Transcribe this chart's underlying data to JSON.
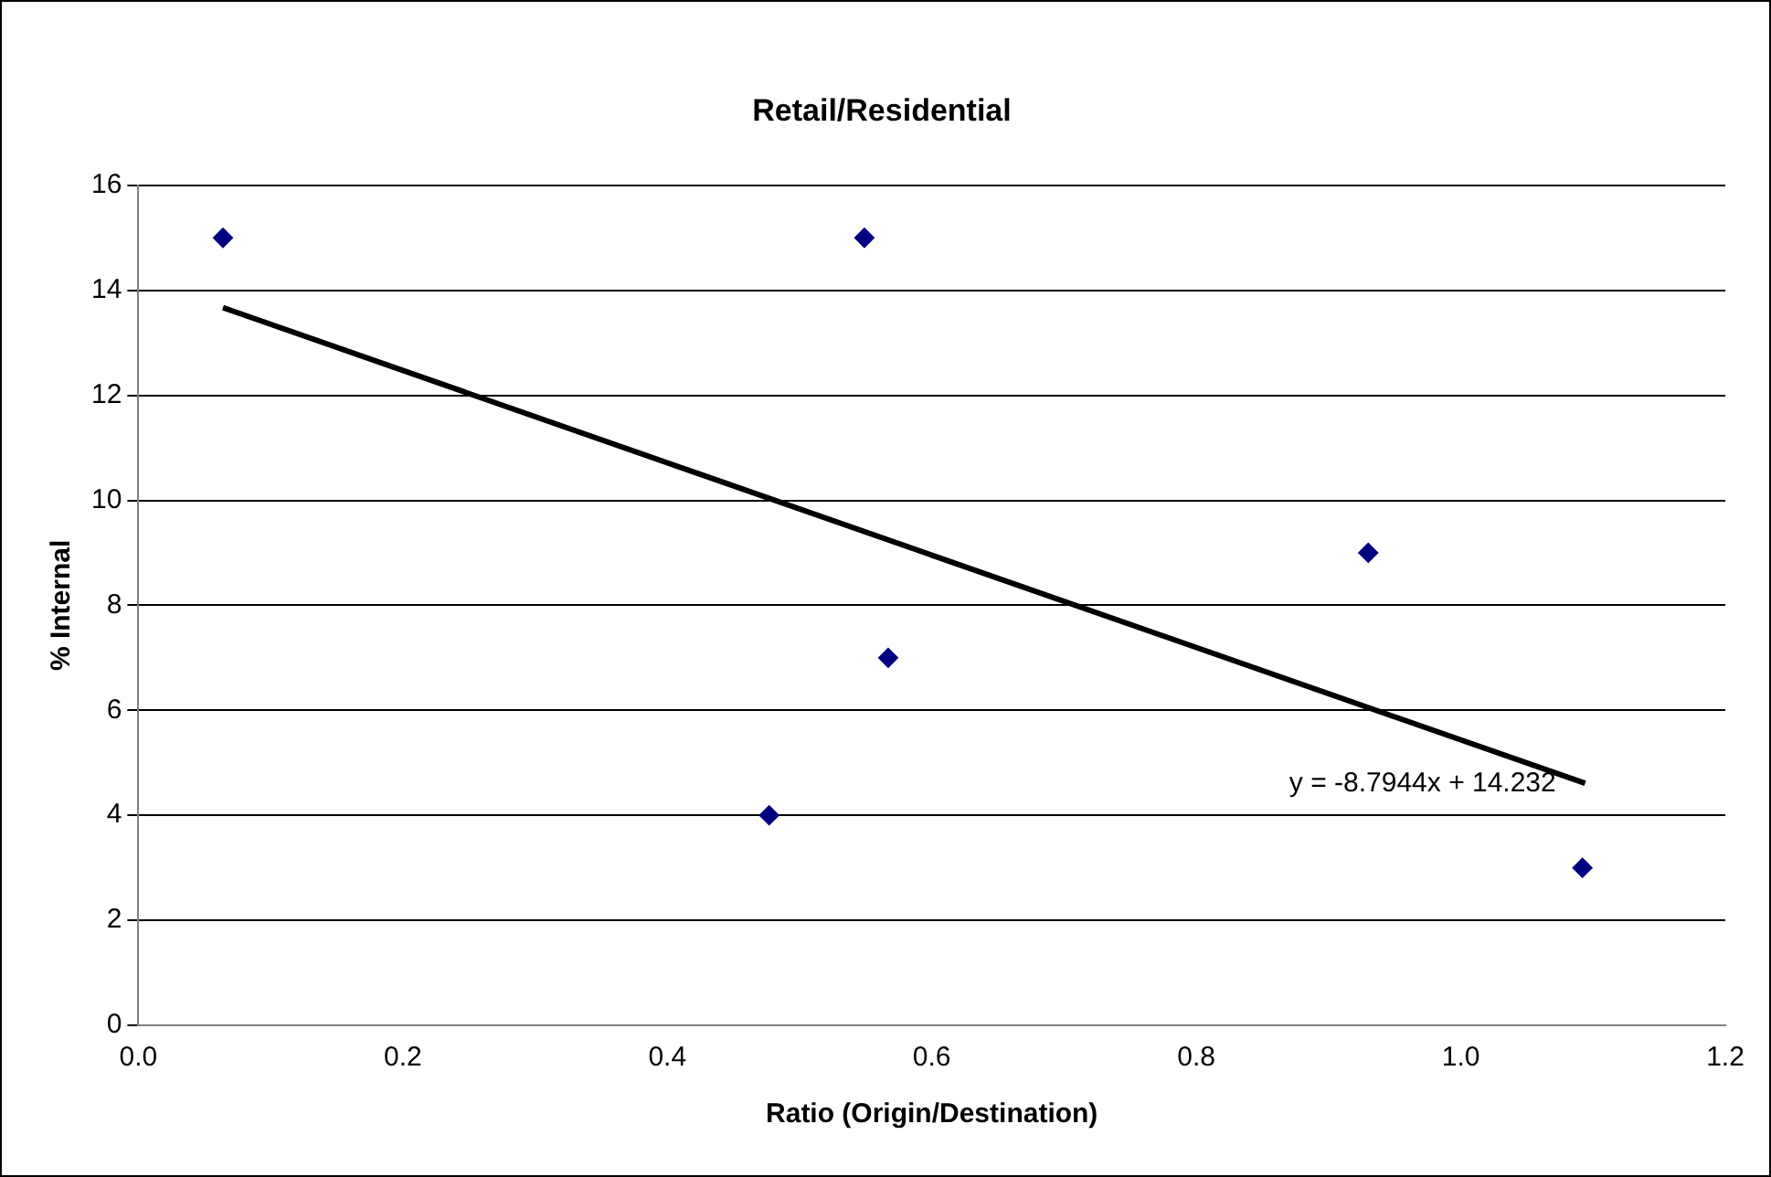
{
  "chart_data": {
    "type": "scatter",
    "title": "Retail/Residential",
    "xlabel": "Ratio (Origin/Destination)",
    "ylabel": "% Internal",
    "xlim": [
      0,
      1.2
    ],
    "xticks": [
      {
        "value": 0,
        "label": "0.0"
      },
      {
        "value": 0.2,
        "label": "0.2"
      },
      {
        "value": 0.4,
        "label": "0.4"
      },
      {
        "value": 0.6,
        "label": "0.6"
      },
      {
        "value": 0.8,
        "label": "0.8"
      },
      {
        "value": 1,
        "label": "1.0"
      },
      {
        "value": 1.2,
        "label": "1.2"
      }
    ],
    "ylim": [
      0,
      16
    ],
    "yticks": [
      0,
      2,
      4,
      6,
      8,
      10,
      12,
      14,
      16
    ],
    "grid": "y",
    "legend": false,
    "marker": "diamond",
    "series": [
      {
        "type": "scatter",
        "color": "#000080",
        "x": [
          0.064,
          0.549,
          0.567,
          0.477,
          0.93,
          1.092
        ],
        "values": [
          15,
          15,
          7,
          4,
          9,
          3
        ]
      },
      {
        "type": "line",
        "color": "#000000",
        "marker": "none",
        "x": [
          0.064,
          1.094
        ],
        "values": [
          13.67,
          4.61
        ]
      }
    ],
    "annotations": [
      {
        "text": "y = -8.7944x + 14.232",
        "x": 1.072,
        "y": 4.6
      }
    ]
  }
}
